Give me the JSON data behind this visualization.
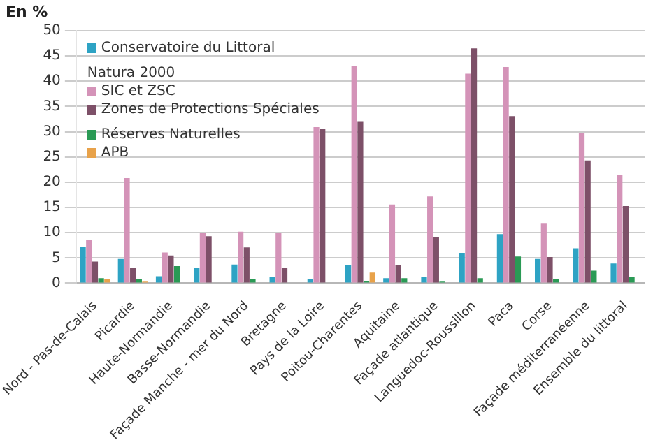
{
  "chart_data": {
    "type": "bar",
    "ylabel": "En %",
    "categories": [
      "Nord - Pas-de-Calais",
      "Picardie",
      "Haute-Normandie",
      "Basse-Normandie",
      "Façade Manche - mer du Nord",
      "Bretagne",
      "Pays de la Loire",
      "Poitou-Charentes",
      "Aquitaine",
      "Façade atlantique",
      "Languedoc-Roussillon",
      "Paca",
      "Corse",
      "Façade méditerranéenne",
      "Ensemble du littoral"
    ],
    "series": [
      {
        "name": "Conservatoire du Littoral",
        "color": "#2ea3c4",
        "values": [
          7.2,
          4.8,
          1.4,
          3.0,
          3.7,
          1.2,
          0.8,
          3.6,
          1.0,
          1.3,
          6.0,
          9.7,
          4.8,
          6.9,
          3.9
        ]
      },
      {
        "name": "SIC et ZSC",
        "color": "#d493b8",
        "values": [
          8.5,
          20.8,
          6.1,
          10.0,
          10.2,
          10.0,
          30.9,
          43.1,
          15.6,
          17.2,
          41.5,
          42.8,
          11.8,
          29.8,
          21.5
        ]
      },
      {
        "name": "Zones de Protections Spéciales",
        "color": "#7d5068",
        "values": [
          4.3,
          3.0,
          5.5,
          9.3,
          7.1,
          3.1,
          30.6,
          32.1,
          3.6,
          9.2,
          46.5,
          33.1,
          5.2,
          24.3,
          15.3
        ]
      },
      {
        "name": "Réserves Naturelles",
        "color": "#2a9a55",
        "values": [
          1.0,
          0.8,
          3.4,
          null,
          0.9,
          null,
          null,
          0.5,
          1.0,
          0.3,
          1.0,
          5.3,
          0.8,
          2.5,
          1.3
        ]
      },
      {
        "name": "APB",
        "color": "#e8a24a",
        "values": [
          0.8,
          0.3,
          null,
          null,
          null,
          null,
          null,
          2.1,
          null,
          null,
          null,
          null,
          null,
          null,
          null
        ]
      }
    ],
    "annotations": [
      "Natura 2000"
    ],
    "ylim": [
      0,
      50
    ],
    "yticks": [
      0,
      5,
      10,
      15,
      20,
      25,
      30,
      35,
      40,
      45,
      50
    ],
    "grid": "y",
    "legend": "top left"
  }
}
